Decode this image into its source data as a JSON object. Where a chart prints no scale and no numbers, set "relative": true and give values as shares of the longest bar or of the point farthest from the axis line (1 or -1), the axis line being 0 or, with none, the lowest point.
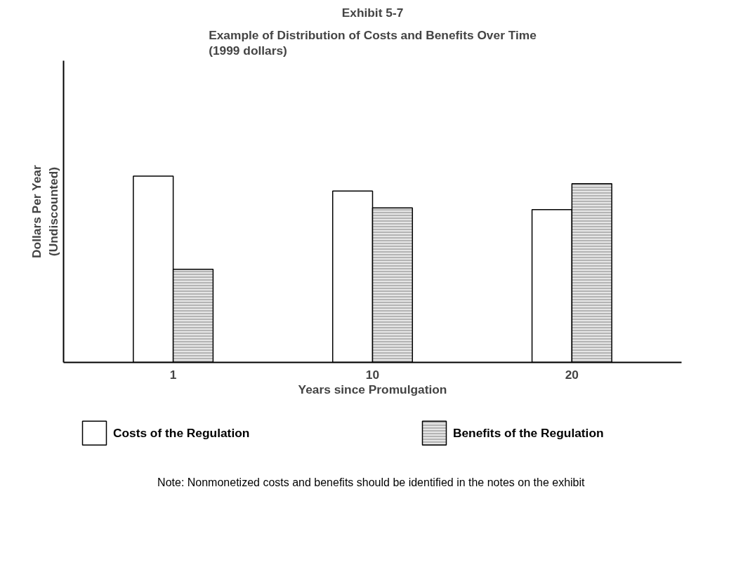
{
  "chart_data": {
    "type": "bar",
    "title": "Exhibit 5-7",
    "subtitle": "Example of Distribution of Costs and Benefits Over Time\n(1999 dollars)",
    "xlabel": "Years since Promulgation",
    "ylabel": "Dollars Per Year\n(Undiscounted)",
    "categories": [
      "1",
      "10",
      "20"
    ],
    "relative": true,
    "grid": false,
    "legend": "bottom",
    "series": [
      {
        "name": "Costs of the Regulation",
        "color": "#ffffff",
        "values": [
          1.0,
          0.92,
          0.82
        ]
      },
      {
        "name": "Benefits of the Regulation",
        "color": "#e6e6e6",
        "values": [
          0.5,
          0.83,
          0.96
        ]
      }
    ],
    "annotations": [
      "Note: Nonmonetized  costs and benefits should be identified in the notes on the exhibit"
    ]
  }
}
